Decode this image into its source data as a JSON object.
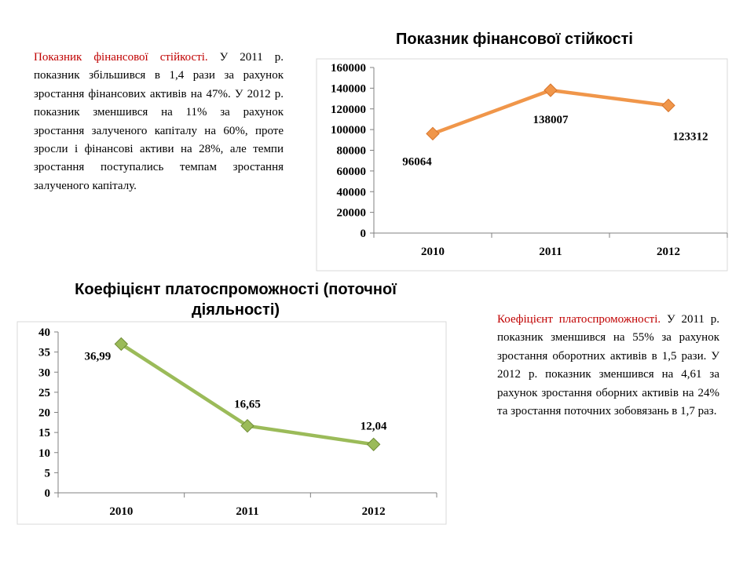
{
  "paragraph1": {
    "lead": "Показник фінансової стійкості.",
    "text": " У 2011 р. показник збільшився в 1,4 рази за рахунок зростання фінансових активів на 47%. У 2012 р. показник зменшився на 11% за рахунок зростання залученого капіталу на 60%, проте зросли і фінансові активи на 28%, але темпи зростання поступались темпам зростання залученого капіталу."
  },
  "paragraph2": {
    "lead": "Коефіцієнт платоспроможності.",
    "text": " У 2011 р. показник зменшився на 55% за рахунок зростання оборотних активів в 1,5 рази. У 2012 р. показник зменшився на 4,61 за рахунок зростання оборних активів на 24% та зростання поточних зобовязань в 1,7 раз."
  },
  "chart_data": [
    {
      "type": "line",
      "title": "Показник фінансової стійкості",
      "categories": [
        "2010",
        "2011",
        "2012"
      ],
      "series": [
        {
          "values": [
            96064,
            138007,
            123312
          ],
          "color": "#f0964a"
        }
      ],
      "data_labels": [
        "96064",
        "138007",
        "123312"
      ],
      "y_ticks": [
        "0",
        "20000",
        "40000",
        "60000",
        "80000",
        "100000",
        "120000",
        "140000",
        "160000"
      ],
      "ylim": [
        0,
        160000
      ],
      "grid": false,
      "legend": "none"
    },
    {
      "type": "line",
      "title": "Коефіцієнт платоспроможності (поточної діяльності)",
      "title_lines": [
        "Коефіцієнт платоспроможності (поточної",
        "діяльності)"
      ],
      "categories": [
        "2010",
        "2011",
        "2012"
      ],
      "series": [
        {
          "values": [
            36.99,
            16.65,
            12.04
          ],
          "color": "#9bbb59"
        }
      ],
      "data_labels": [
        "36,99",
        "16,65",
        "12,04"
      ],
      "y_ticks": [
        "0",
        "5",
        "10",
        "15",
        "20",
        "25",
        "30",
        "35",
        "40"
      ],
      "ylim": [
        0,
        40
      ],
      "grid": false,
      "legend": "none"
    }
  ]
}
